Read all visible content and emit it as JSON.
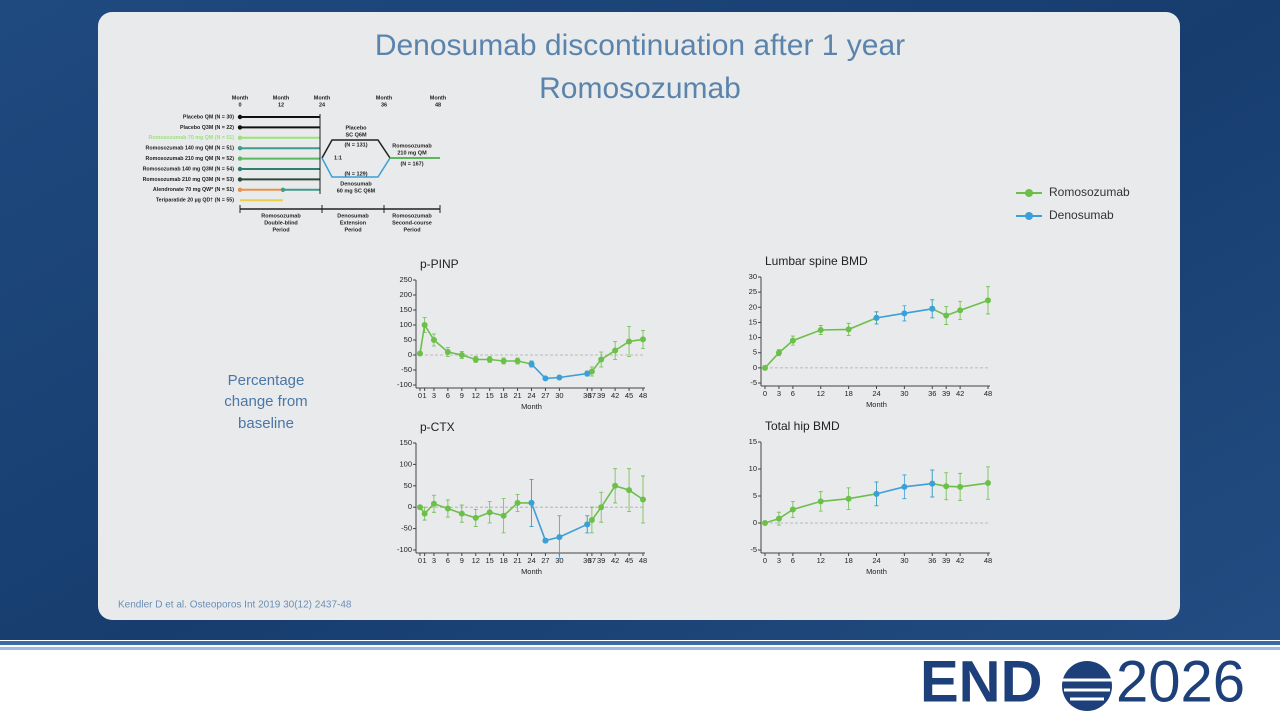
{
  "title": [
    "Denosumab discontinuation after 1 year",
    "Romosozumab"
  ],
  "y_label": [
    "Percentage",
    "change from",
    "baseline"
  ],
  "citation": "Kendler D et al. Osteoporos Int 2019 30(12) 2437-48",
  "logo": {
    "left": "END",
    "right": "2026"
  },
  "design": {
    "months": [
      [
        "Month",
        "0"
      ],
      [
        "Month",
        "12"
      ],
      [
        "Month",
        "24"
      ],
      [
        "Month",
        "36"
      ],
      [
        "Month",
        "48"
      ]
    ],
    "arms": [
      {
        "label": "Placebo QM (N = 30)",
        "color": "#111111"
      },
      {
        "label": "Placebo Q3M (N = 22)",
        "color": "#111111"
      },
      {
        "label": "Romosozumab 70 mg QM (N = 51)",
        "color": "#9be27a"
      },
      {
        "label": "Romosozumab 140 mg QM (N = 51)",
        "color": "#3f9b8a"
      },
      {
        "label": "Romosozumab 210 mg QM (N = 52)",
        "color": "#5cb85c"
      },
      {
        "label": "Romosozumab 140 mg Q3M (N = 54)",
        "color": "#2f7f6f"
      },
      {
        "label": "Romosozumab 210 mg Q3M (N = 53)",
        "color": "#2b4a3a"
      },
      {
        "label": "Alendronate 70 mg QW* (N = 51)",
        "color": "#e8914a",
        "color2": "#3f9b8a"
      },
      {
        "label": "Teriparatide 20 µg QD† (N = 55)",
        "color": "#e8d04a"
      }
    ],
    "placebo_box": [
      "Placebo",
      "SC Q6M",
      "(N = 131)"
    ],
    "ratio": "1:1",
    "denosumab_box": [
      "(N = 129)",
      "Denosumab",
      "60 mg SC Q6M"
    ],
    "second_course": [
      "Romosozumab",
      "210 mg QM",
      "(N = 167)"
    ],
    "periods": [
      [
        "Romosozumab",
        "Double-blind",
        "Period"
      ],
      [
        "Denosumab",
        "Extension",
        "Period"
      ],
      [
        "Romosozumab",
        "Second-course",
        "Period"
      ]
    ]
  },
  "chart_data": [
    {
      "type": "line",
      "title": "p-PINP",
      "xlabel": "Month",
      "x": [
        0,
        1,
        3,
        6,
        9,
        12,
        15,
        18,
        21,
        24,
        27,
        30,
        36,
        37,
        39,
        42,
        45,
        48
      ],
      "xticks": [
        0,
        1,
        3,
        6,
        9,
        12,
        15,
        18,
        21,
        24,
        27,
        30,
        36,
        37,
        39,
        42,
        45,
        48
      ],
      "xlim": [
        0,
        48
      ],
      "ylim": [
        -100,
        250
      ],
      "yticks": [
        -100,
        -50,
        0,
        50,
        100,
        150,
        200,
        250
      ],
      "reference_line": 0,
      "series": [
        {
          "name": "Romosozumab",
          "color": "#6cc04a",
          "values": [
            5,
            100,
            50,
            10,
            0,
            -15,
            -15,
            -20,
            -20,
            -30,
            null,
            null,
            -62,
            -55,
            -15,
            15,
            45,
            52
          ],
          "errors": [
            0,
            25,
            20,
            15,
            12,
            10,
            10,
            10,
            10,
            10,
            null,
            null,
            8,
            15,
            25,
            30,
            50,
            30
          ]
        },
        {
          "name": "Denosumab",
          "color": "#3b9fd8",
          "values": [
            null,
            null,
            null,
            null,
            null,
            null,
            null,
            null,
            null,
            -30,
            -78,
            -75,
            -62,
            null,
            null,
            null,
            null,
            null
          ],
          "errors": [
            null,
            null,
            null,
            null,
            null,
            null,
            null,
            null,
            null,
            10,
            5,
            5,
            8,
            null,
            null,
            null,
            null,
            null
          ]
        }
      ]
    },
    {
      "type": "line",
      "title": "Lumbar spine BMD",
      "xlabel": "Month",
      "x": [
        0,
        3,
        6,
        12,
        18,
        24,
        30,
        36,
        39,
        42,
        48
      ],
      "xticks": [
        0,
        3,
        6,
        12,
        18,
        24,
        30,
        36,
        39,
        42,
        48
      ],
      "xlim": [
        0,
        48
      ],
      "ylim": [
        -5,
        30
      ],
      "yticks": [
        -5,
        0,
        5,
        10,
        15,
        20,
        25,
        30
      ],
      "reference_line": 0,
      "series": [
        {
          "name": "Romosozumab",
          "color": "#6cc04a",
          "values": [
            0,
            5,
            9,
            12.5,
            12.7,
            16.5,
            null,
            19.5,
            17.3,
            19,
            22.3
          ],
          "errors": [
            0,
            1,
            1.5,
            1.5,
            2,
            2,
            null,
            3,
            3,
            3,
            4.5
          ]
        },
        {
          "name": "Denosumab",
          "color": "#3b9fd8",
          "values": [
            null,
            null,
            null,
            null,
            null,
            16.5,
            18,
            19.5,
            null,
            null,
            null
          ],
          "errors": [
            null,
            null,
            null,
            null,
            null,
            2,
            2.5,
            3,
            null,
            null,
            null
          ]
        }
      ]
    },
    {
      "type": "line",
      "title": "p-CTX",
      "xlabel": "Month",
      "x": [
        0,
        1,
        3,
        6,
        9,
        12,
        15,
        18,
        21,
        24,
        27,
        30,
        36,
        37,
        39,
        42,
        45,
        48
      ],
      "xticks": [
        0,
        1,
        3,
        6,
        9,
        12,
        15,
        18,
        21,
        24,
        27,
        30,
        36,
        37,
        39,
        42,
        45,
        48
      ],
      "xlim": [
        0,
        48
      ],
      "ylim": [
        -100,
        150
      ],
      "yticks": [
        -100,
        -50,
        0,
        50,
        100,
        150
      ],
      "reference_line": 0,
      "series": [
        {
          "name": "Romosozumab",
          "color": "#6cc04a",
          "values": [
            0,
            -15,
            8,
            -3,
            -15,
            -25,
            -12,
            -20,
            10,
            10,
            null,
            null,
            -40,
            -30,
            0,
            50,
            40,
            18
          ],
          "errors": [
            0,
            15,
            20,
            20,
            20,
            20,
            25,
            40,
            20,
            55,
            null,
            null,
            20,
            30,
            35,
            40,
            50,
            55
          ]
        },
        {
          "name": "Denosumab",
          "color": "#3b9fd8",
          "values": [
            null,
            null,
            null,
            null,
            null,
            null,
            null,
            null,
            null,
            10,
            -78,
            -70,
            -40,
            null,
            null,
            null,
            null,
            null
          ],
          "errors": [
            null,
            null,
            null,
            null,
            null,
            null,
            null,
            null,
            null,
            55,
            5,
            50,
            20,
            null,
            null,
            null,
            null,
            null
          ]
        }
      ]
    },
    {
      "type": "line",
      "title": "Total hip BMD",
      "xlabel": "Month",
      "x": [
        0,
        3,
        6,
        12,
        18,
        24,
        30,
        36,
        39,
        42,
        48
      ],
      "xticks": [
        0,
        3,
        6,
        12,
        18,
        24,
        30,
        36,
        39,
        42,
        48
      ],
      "xlim": [
        0,
        48
      ],
      "ylim": [
        -5,
        15
      ],
      "yticks": [
        -5,
        0,
        5,
        10,
        15
      ],
      "reference_line": 0,
      "series": [
        {
          "name": "Romosozumab",
          "color": "#6cc04a",
          "values": [
            0,
            0.8,
            2.5,
            4,
            4.5,
            5.4,
            null,
            7.3,
            6.8,
            6.7,
            7.4
          ],
          "errors": [
            0,
            1.2,
            1.5,
            1.8,
            2,
            2.2,
            null,
            2.5,
            2.5,
            2.5,
            3
          ]
        },
        {
          "name": "Denosumab",
          "color": "#3b9fd8",
          "values": [
            null,
            null,
            null,
            null,
            null,
            5.4,
            6.7,
            7.3,
            null,
            null,
            null
          ],
          "errors": [
            null,
            null,
            null,
            null,
            null,
            2.2,
            2.2,
            2.5,
            null,
            null,
            null
          ]
        }
      ]
    }
  ]
}
